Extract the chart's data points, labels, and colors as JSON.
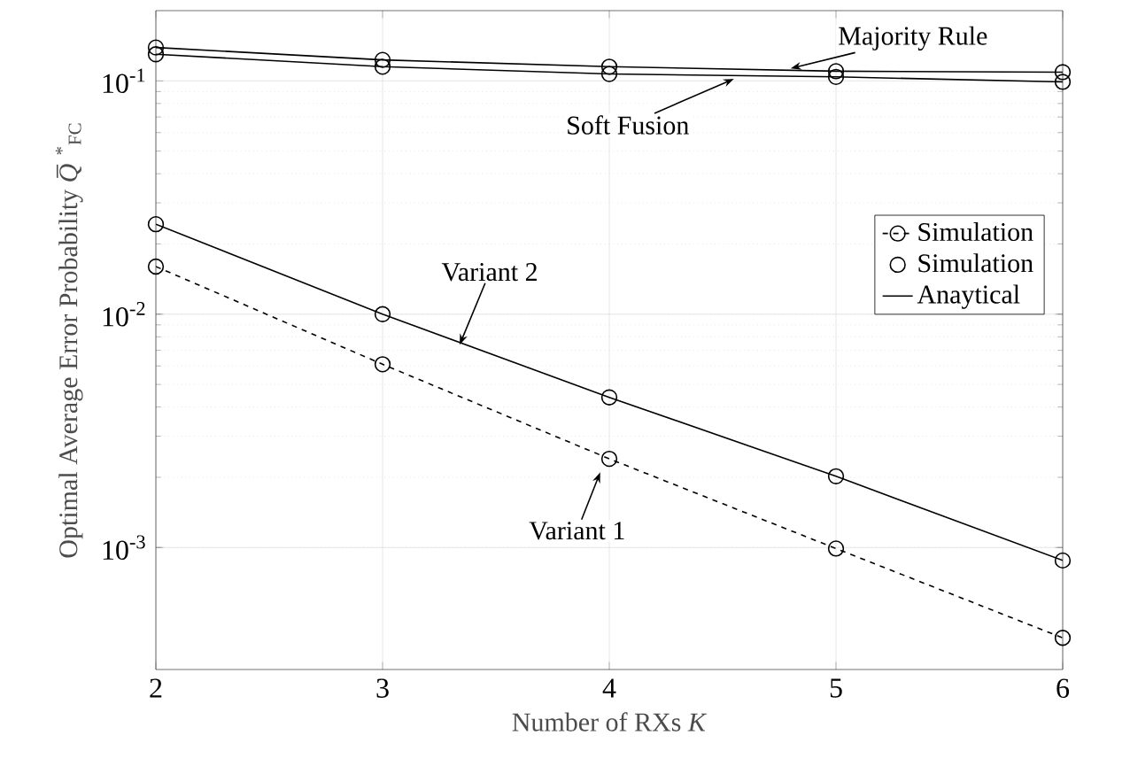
{
  "chart_data": {
    "type": "line",
    "xlabel": "Number of RXs *K*",
    "ylabel": "Optimal Average Error Probability *Q̅*$^{*}$$_{FC}$",
    "x": [
      2,
      3,
      4,
      5,
      6
    ],
    "xlim": [
      2,
      6
    ],
    "xticks": [
      2,
      3,
      4,
      5,
      6
    ],
    "ylim": [
      0.0003,
      0.2
    ],
    "log": true,
    "yticks": [
      {
        "value": 0.001,
        "label": "10$^{-3}$"
      },
      {
        "value": 0.01,
        "label": "10$^{-2}$"
      },
      {
        "value": 0.1,
        "label": "10$^{-1}$"
      }
    ],
    "grid": true,
    "legend": "right",
    "series": [
      {
        "name": "Simulation",
        "color": "#000000",
        "line_style": "dashed",
        "marker": "circle",
        "values": [
          0.016,
          0.0061,
          0.0024,
          0.00099,
          0.00041
        ]
      },
      {
        "name": "Simulation",
        "type": "scatter",
        "color": "#000000",
        "marker": "circle",
        "values": [
          0.0243,
          0.01,
          0.0044,
          0.00202,
          0.00088
        ]
      },
      {
        "name": "Anaytical",
        "color": "#000000",
        "line_style": "solid",
        "marker": "none",
        "values": [
          0.0243,
          0.01,
          0.0044,
          0.00202,
          0.00088
        ]
      },
      {
        "type": "scatter",
        "color": "#000000",
        "marker": "circle",
        "values": [
          0.139,
          0.123,
          0.115,
          0.11,
          0.109
        ]
      },
      {
        "color": "#000000",
        "line_style": "solid",
        "marker": "none",
        "values": [
          0.139,
          0.123,
          0.115,
          0.11,
          0.109
        ]
      },
      {
        "type": "scatter",
        "color": "#000000",
        "marker": "circle",
        "values": [
          0.13,
          0.115,
          0.107,
          0.104,
          0.099
        ]
      },
      {
        "color": "#000000",
        "line_style": "solid",
        "marker": "none",
        "values": [
          0.13,
          0.115,
          0.107,
          0.104,
          0.099
        ]
      }
    ],
    "annotations": [
      {
        "text": "Majority Rule",
        "x": 4.8,
        "y": 0.113
      },
      {
        "text": "Soft Fusion",
        "x": 4.55,
        "y": 0.102
      },
      {
        "text": "Variant 2",
        "x": 3.34,
        "y": 0.0074
      },
      {
        "text": "Variant 1",
        "x": 3.96,
        "y": 0.0021
      }
    ]
  }
}
